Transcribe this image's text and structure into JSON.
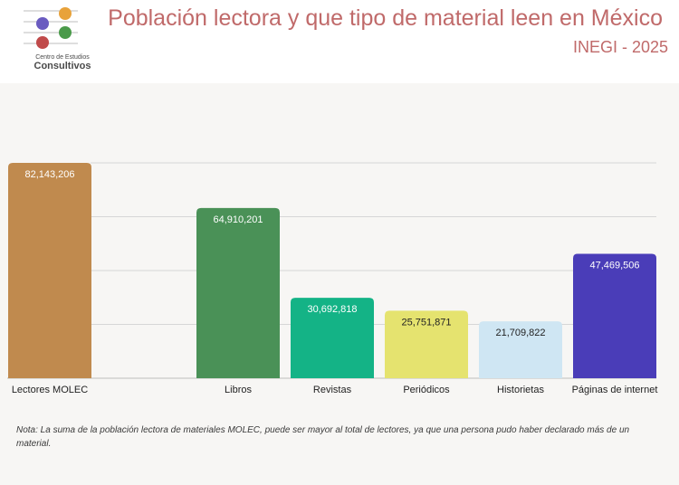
{
  "header": {
    "title": "Población lectora y que tipo de material leen en México",
    "subtitle": "INEGI - 2025",
    "logo_line1": "Centro de Estudios",
    "logo_line2": "Consultivos"
  },
  "colors": {
    "title": "#c06a6a",
    "logo_orange": "#e8a23a",
    "logo_purple": "#6a5bc0",
    "logo_green": "#4a9a4a",
    "logo_red": "#c04a4a"
  },
  "chart_data": {
    "type": "bar",
    "title": "",
    "xlabel": "",
    "ylabel": "",
    "ylim": [
      0,
      82143206
    ],
    "grid": true,
    "categories": [
      "Lectores MOLEC",
      "Libros",
      "Revistas",
      "Periódicos",
      "Historietas",
      "Páginas de internet"
    ],
    "values": [
      82143206,
      64910201,
      30692818,
      25751871,
      21709822,
      47469506
    ],
    "value_labels": [
      "82,143,206",
      "64,910,201",
      "30,692,818",
      "25,751,871",
      "21,709,822",
      "47,469,506"
    ],
    "bar_colors": [
      "#c08a4e",
      "#4a9157",
      "#14b386",
      "#e5e36f",
      "#cfe6f3",
      "#4a3db8"
    ],
    "label_colors": [
      "#ffffff",
      "#ffffff",
      "#ffffff",
      "#222222",
      "#222222",
      "#ffffff"
    ]
  },
  "note": "Nota: La suma de la población lectora de materiales MOLEC, puede ser mayor al total de lectores, ya que una persona pudo haber declarado más de un material."
}
